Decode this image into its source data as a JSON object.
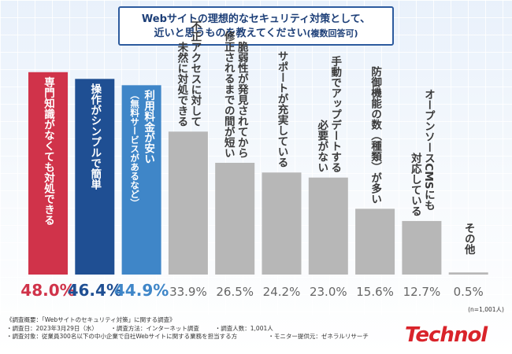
{
  "title": {
    "line1": "Webサイトの理想的なセキュリティ対策として、",
    "line2": "近いと思うものを教えてください",
    "line2_sub": "(複数回答可)"
  },
  "chart_data": {
    "type": "bar",
    "categories": [
      "専門知識がなくても対処できる",
      "操作がシンプルで簡単",
      "利用料金が安い（無料サービスがあるなど）",
      "不正アクセスに対して未然に対処できる",
      "脆弱性が発見されてから修正されるまでの間が短い",
      "サポートが充実している",
      "手動でアップデートする必要がない",
      "防御機能の数（種類）が多い",
      "オープンソースCMSにも対応している",
      "その他"
    ],
    "bar_label_lines": [
      [
        "専門知識がなくても対処できる"
      ],
      [
        "操作がシンプルで簡単"
      ],
      [
        "利用料金が安い",
        "（無料サービスがあるなど）"
      ],
      [
        "不正アクセスに対して",
        "未然に対処できる"
      ],
      [
        "脆弱性が発見されてから",
        "修正されるまでの間が短い"
      ],
      [
        "サポートが充実している"
      ],
      [
        "手動でアップデートする",
        "必要がない"
      ],
      [
        "防御機能の数（種類）が多い"
      ],
      [
        "オープンソースCMSにも",
        "対応している"
      ],
      [
        "その他"
      ]
    ],
    "values": [
      48.0,
      46.4,
      44.9,
      33.9,
      26.5,
      24.2,
      23.0,
      15.6,
      12.7,
      0.5
    ],
    "value_labels": [
      "48.0%",
      "46.4%",
      "44.9%",
      "33.9%",
      "26.5%",
      "24.2%",
      "23.0%",
      "15.6%",
      "12.7%",
      "0.5%"
    ],
    "colors": [
      "#d0334a",
      "#1f4f93",
      "#3f86c8",
      "#b7b7b7",
      "#b7b7b7",
      "#b7b7b7",
      "#b7b7b7",
      "#b7b7b7",
      "#b7b7b7",
      "#b7b7b7"
    ],
    "value_colors": [
      "#d0334a",
      "#1f4f93",
      "#3f86c8",
      "#666666",
      "#666666",
      "#666666",
      "#666666",
      "#666666",
      "#666666",
      "#666666"
    ],
    "ylim": [
      0,
      50
    ],
    "n_note": "(n=1,001人)"
  },
  "footer": {
    "line1": "《調査概要：「Webサイトのセキュリティ対策」に関する調査》",
    "line2a": "・調査日：2023年3月29日（水）",
    "line2b": "・調査方法：インターネット調査",
    "line2c": "・調査人数：1,001人",
    "line3a": "・調査対象：従業員300名以下の中小企業で自社Webサイトに関する業務を担当する方",
    "line3b": "・モニター提供元：ゼネラルリサーチ"
  },
  "brand": "Technol"
}
